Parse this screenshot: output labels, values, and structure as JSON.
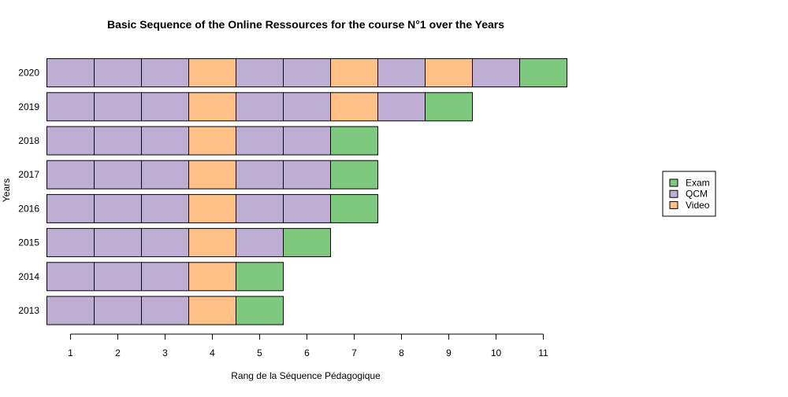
{
  "chart_data": {
    "type": "bar",
    "orientation": "horizontal-stacked-sequence",
    "title": "Basic Sequence of the Online Ressources for the course N°1 over the Years",
    "xlabel": "Rang de la Séquence Pédagogique",
    "ylabel": "Years",
    "xticks": [
      1,
      2,
      3,
      4,
      5,
      6,
      7,
      8,
      9,
      10,
      11
    ],
    "categories": [
      "2013",
      "2014",
      "2015",
      "2016",
      "2017",
      "2018",
      "2019",
      "2020"
    ],
    "series_colors": {
      "Exam": "#7fc97f",
      "QCM": "#beaed4",
      "Video": "#fdc086"
    },
    "legend": {
      "position": "right",
      "items": [
        "Exam",
        "QCM",
        "Video"
      ]
    },
    "sequences": [
      {
        "year": "2013",
        "items": [
          "QCM",
          "QCM",
          "QCM",
          "Video",
          "Exam"
        ]
      },
      {
        "year": "2014",
        "items": [
          "QCM",
          "QCM",
          "QCM",
          "Video",
          "Exam"
        ]
      },
      {
        "year": "2015",
        "items": [
          "QCM",
          "QCM",
          "QCM",
          "Video",
          "QCM",
          "Exam"
        ]
      },
      {
        "year": "2016",
        "items": [
          "QCM",
          "QCM",
          "QCM",
          "Video",
          "QCM",
          "QCM",
          "Exam"
        ]
      },
      {
        "year": "2017",
        "items": [
          "QCM",
          "QCM",
          "QCM",
          "Video",
          "QCM",
          "QCM",
          "Exam"
        ]
      },
      {
        "year": "2018",
        "items": [
          "QCM",
          "QCM",
          "QCM",
          "Video",
          "QCM",
          "QCM",
          "Exam"
        ]
      },
      {
        "year": "2019",
        "items": [
          "QCM",
          "QCM",
          "QCM",
          "Video",
          "QCM",
          "QCM",
          "Video",
          "QCM",
          "Exam"
        ]
      },
      {
        "year": "2020",
        "items": [
          "QCM",
          "QCM",
          "QCM",
          "Video",
          "QCM",
          "QCM",
          "Video",
          "QCM",
          "Video",
          "QCM",
          "Exam"
        ]
      }
    ]
  }
}
